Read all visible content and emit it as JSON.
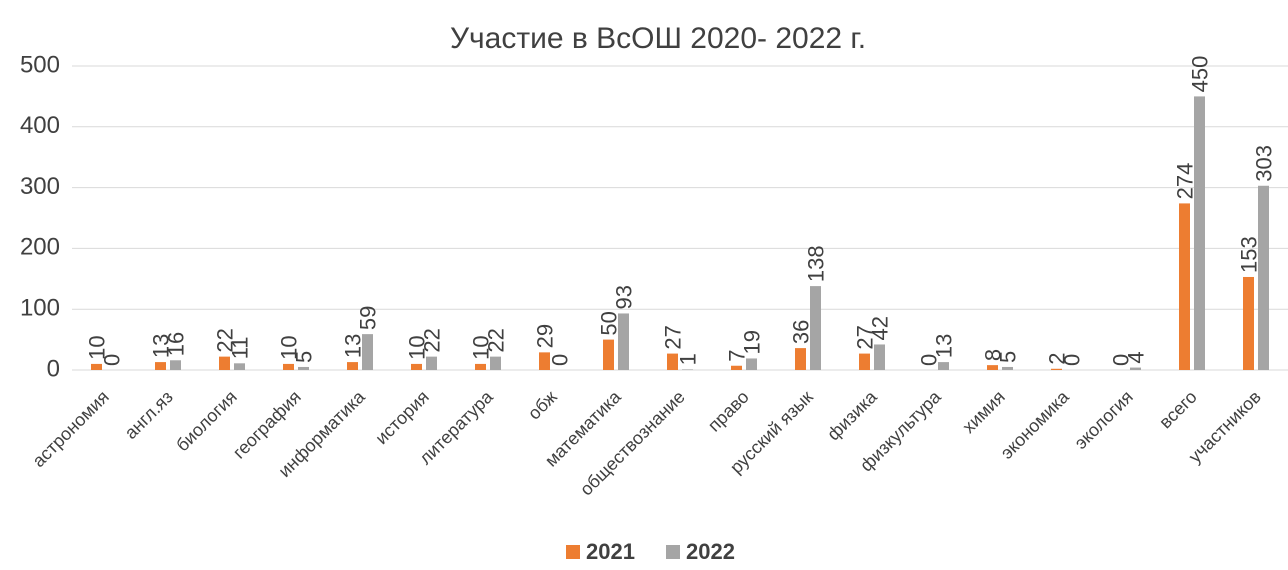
{
  "chart_data": {
    "type": "bar",
    "title": "Участие в ВсОШ 2020- 2022 г.",
    "categories": [
      "астрономия",
      "англ.яз",
      "биология",
      "география",
      "информатика",
      "история",
      "литература",
      "обж",
      "математика",
      "обществознание",
      "право",
      "русский язык",
      "физика",
      "физкультура",
      "химия",
      "экономика",
      "экология",
      "всего",
      "участников"
    ],
    "series": [
      {
        "name": "2021",
        "color": "#ed7d31",
        "values": [
          10,
          13,
          22,
          10,
          13,
          10,
          10,
          29,
          50,
          27,
          7,
          36,
          27,
          0,
          8,
          2,
          0,
          274,
          153
        ]
      },
      {
        "name": "2022",
        "color": "#a5a5a5",
        "values": [
          0,
          16,
          11,
          5,
          59,
          22,
          22,
          0,
          93,
          1,
          19,
          138,
          42,
          13,
          5,
          0,
          4,
          450,
          303
        ]
      }
    ],
    "ylim": [
      0,
      500
    ],
    "yticks": [
      0,
      100,
      200,
      300,
      400,
      500
    ],
    "grid": true,
    "legend": "bottom"
  }
}
